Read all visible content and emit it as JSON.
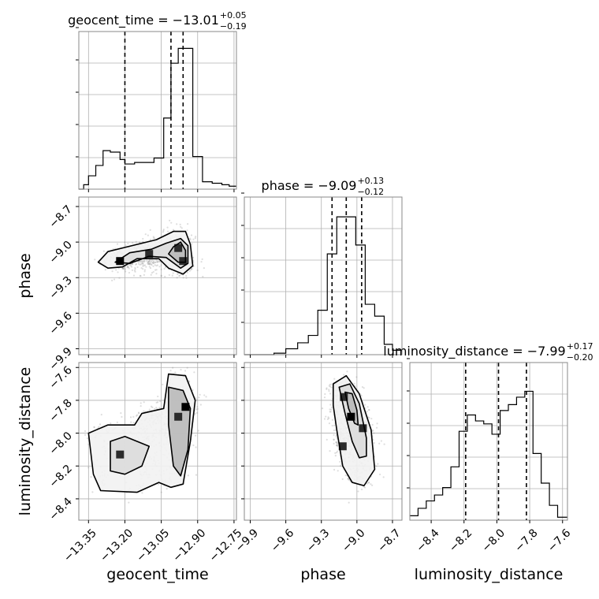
{
  "chart_data": {
    "type": "corner",
    "parameters": [
      "geocent_time",
      "phase",
      "luminosity_distance"
    ],
    "titles": [
      {
        "param": "geocent_time",
        "median": "−13.01",
        "plus": "+0.05",
        "minus": "−0.19"
      },
      {
        "param": "phase",
        "median": "−9.09",
        "plus": "+0.13",
        "minus": "−0.12"
      },
      {
        "param": "luminosity_distance",
        "median": "−7.99",
        "plus": "+0.17",
        "minus": "−0.20"
      }
    ],
    "title_template": " = ",
    "ranges": {
      "geocent_time": [
        -13.39,
        -12.74
      ],
      "phase": [
        -9.95,
        -8.62
      ],
      "luminosity_distance": [
        -8.53,
        -7.57
      ]
    },
    "ticks": {
      "geocent_time": [
        "−13.35",
        "−13.20",
        "−13.05",
        "−12.90",
        "−12.75"
      ],
      "geocent_time_values": [
        -13.35,
        -13.2,
        -13.05,
        -12.9,
        -12.75
      ],
      "phase_x": [
        "−9.9",
        "−9.6",
        "−9.3",
        "−9.0",
        "−8.7"
      ],
      "phase_x_values": [
        -9.9,
        -9.6,
        -9.3,
        -9.0,
        -8.7
      ],
      "phase_y": [
        "−8.7",
        "−9.0",
        "−9.3",
        "−9.6",
        "−9.9"
      ],
      "phase_y_values": [
        -8.7,
        -9.0,
        -9.3,
        -9.6,
        -9.9
      ],
      "luminosity_distance_x": [
        "−8.4",
        "−8.2",
        "−8.0",
        "−7.8",
        "−7.6"
      ],
      "luminosity_distance_x_values": [
        -8.4,
        -8.2,
        -8.0,
        -7.8,
        -7.6
      ],
      "luminosity_distance_y": [
        "−7.6",
        "−7.8",
        "−8.0",
        "−8.2",
        "−8.4"
      ],
      "luminosity_distance_y_values": [
        -7.6,
        -7.8,
        -8.0,
        -8.2,
        -8.4
      ]
    },
    "quantiles": {
      "geocent_time": [
        -13.2,
        -13.01,
        -12.96
      ],
      "phase": [
        -9.21,
        -9.09,
        -8.96
      ],
      "luminosity_distance": [
        -8.19,
        -7.99,
        -7.82
      ]
    },
    "histograms": {
      "geocent_time": {
        "edges": [
          -13.39,
          -13.37,
          -13.35,
          -13.32,
          -13.29,
          -13.26,
          -13.22,
          -13.2,
          -13.16,
          -13.12,
          -13.08,
          -13.04,
          -13.01,
          -12.98,
          -12.95,
          -12.92,
          -12.88,
          -12.84,
          -12.8,
          -12.77,
          -12.74
        ],
        "counts": [
          0,
          0.03,
          0.09,
          0.16,
          0.26,
          0.25,
          0.2,
          0.17,
          0.18,
          0.18,
          0.21,
          0.48,
          0.85,
          0.95,
          0.95,
          0.22,
          0.05,
          0.04,
          0.03,
          0.02
        ]
      },
      "phase": {
        "edges": [
          -9.95,
          -9.88,
          -9.8,
          -9.7,
          -9.6,
          -9.5,
          -9.41,
          -9.33,
          -9.25,
          -9.17,
          -9.09,
          -9.01,
          -8.93,
          -8.85,
          -8.77,
          -8.7,
          -8.62
        ],
        "counts": [
          0,
          0,
          0,
          0.01,
          0.04,
          0.08,
          0.13,
          0.3,
          0.68,
          0.93,
          0.93,
          0.74,
          0.34,
          0.26,
          0.07,
          0.03
        ]
      },
      "luminosity_distance": {
        "edges": [
          -8.53,
          -8.48,
          -8.43,
          -8.38,
          -8.33,
          -8.28,
          -8.23,
          -8.18,
          -8.13,
          -8.08,
          -8.03,
          -7.98,
          -7.93,
          -7.88,
          -7.83,
          -7.78,
          -7.73,
          -7.68,
          -7.63,
          -7.57
        ],
        "counts": [
          0.03,
          0.08,
          0.13,
          0.17,
          0.22,
          0.36,
          0.6,
          0.71,
          0.67,
          0.65,
          0.58,
          0.74,
          0.78,
          0.83,
          0.87,
          0.45,
          0.25,
          0.1,
          0.02
        ]
      }
    },
    "joint_2d": {
      "geocent_time_phase": {
        "core_points": [
          [
            -13.22,
            -9.16
          ],
          [
            -12.98,
            -9.05
          ],
          [
            -12.96,
            -9.16
          ],
          [
            -13.1,
            -9.1
          ]
        ],
        "contours": [
          [
            [
              -13.31,
              -9.17
            ],
            [
              -13.27,
              -9.08
            ],
            [
              -13.17,
              -9.03
            ],
            [
              -13.07,
              -8.98
            ],
            [
              -13.0,
              -8.91
            ],
            [
              -12.95,
              -8.91
            ],
            [
              -12.93,
              -9.02
            ],
            [
              -12.92,
              -9.2
            ],
            [
              -12.96,
              -9.27
            ],
            [
              -13.02,
              -9.22
            ],
            [
              -13.06,
              -9.14
            ],
            [
              -13.15,
              -9.14
            ],
            [
              -13.21,
              -9.21
            ],
            [
              -13.27,
              -9.22
            ]
          ],
          [
            [
              -13.24,
              -9.17
            ],
            [
              -13.18,
              -9.09
            ],
            [
              -13.09,
              -9.06
            ],
            [
              -13.03,
              -9.01
            ],
            [
              -12.97,
              -8.97
            ],
            [
              -12.94,
              -9.03
            ],
            [
              -12.94,
              -9.18
            ],
            [
              -12.97,
              -9.22
            ],
            [
              -13.03,
              -9.13
            ],
            [
              -13.1,
              -9.12
            ],
            [
              -13.18,
              -9.18
            ]
          ],
          [
            [
              -13.0,
              -9.04
            ],
            [
              -12.97,
              -9.0
            ],
            [
              -12.95,
              -9.07
            ],
            [
              -12.95,
              -9.17
            ],
            [
              -12.98,
              -9.17
            ],
            [
              -13.02,
              -9.1
            ]
          ]
        ]
      },
      "geocent_time_luminosity_distance": {
        "core_points": [
          [
            -12.95,
            -7.84
          ],
          [
            -13.22,
            -8.13
          ],
          [
            -12.98,
            -7.9
          ]
        ],
        "contours": [
          [
            [
              -13.35,
              -8.0
            ],
            [
              -13.33,
              -8.25
            ],
            [
              -13.3,
              -8.35
            ],
            [
              -13.15,
              -8.36
            ],
            [
              -13.06,
              -8.3
            ],
            [
              -13.01,
              -8.33
            ],
            [
              -12.96,
              -8.31
            ],
            [
              -12.93,
              -8.05
            ],
            [
              -12.91,
              -7.8
            ],
            [
              -12.95,
              -7.65
            ],
            [
              -13.02,
              -7.64
            ],
            [
              -13.04,
              -7.85
            ],
            [
              -13.13,
              -7.88
            ],
            [
              -13.16,
              -7.95
            ],
            [
              -13.27,
              -7.95
            ]
          ],
          [
            [
              -13.26,
              -8.05
            ],
            [
              -13.26,
              -8.23
            ],
            [
              -13.2,
              -8.25
            ],
            [
              -13.13,
              -8.2
            ],
            [
              -13.1,
              -8.08
            ],
            [
              -13.2,
              -8.02
            ]
          ],
          [
            [
              -13.02,
              -7.72
            ],
            [
              -12.96,
              -7.74
            ],
            [
              -12.93,
              -7.85
            ],
            [
              -12.94,
              -8.1
            ],
            [
              -12.97,
              -8.26
            ],
            [
              -13.0,
              -8.2
            ],
            [
              -13.02,
              -7.95
            ]
          ]
        ]
      },
      "phase_luminosity_distance": {
        "core_points": [
          [
            -9.05,
            -7.9
          ],
          [
            -9.11,
            -7.78
          ],
          [
            -8.95,
            -7.97
          ],
          [
            -9.12,
            -8.08
          ]
        ],
        "contours": [
          [
            [
              -9.2,
              -7.7
            ],
            [
              -9.09,
              -7.65
            ],
            [
              -8.98,
              -7.76
            ],
            [
              -8.88,
              -7.98
            ],
            [
              -8.85,
              -8.22
            ],
            [
              -8.94,
              -8.32
            ],
            [
              -9.04,
              -8.3
            ],
            [
              -9.12,
              -8.2
            ],
            [
              -9.17,
              -7.98
            ],
            [
              -9.2,
              -7.83
            ]
          ],
          [
            [
              -9.15,
              -7.72
            ],
            [
              -9.06,
              -7.7
            ],
            [
              -8.98,
              -7.82
            ],
            [
              -8.92,
              -8.03
            ],
            [
              -8.92,
              -8.14
            ],
            [
              -8.98,
              -8.15
            ],
            [
              -9.04,
              -8.05
            ],
            [
              -9.1,
              -7.88
            ]
          ],
          [
            [
              -9.1,
              -7.75
            ],
            [
              -9.04,
              -7.76
            ],
            [
              -9.0,
              -7.86
            ],
            [
              -8.99,
              -7.95
            ],
            [
              -9.02,
              -7.94
            ],
            [
              -9.07,
              -7.85
            ]
          ]
        ]
      }
    },
    "grid": true
  }
}
